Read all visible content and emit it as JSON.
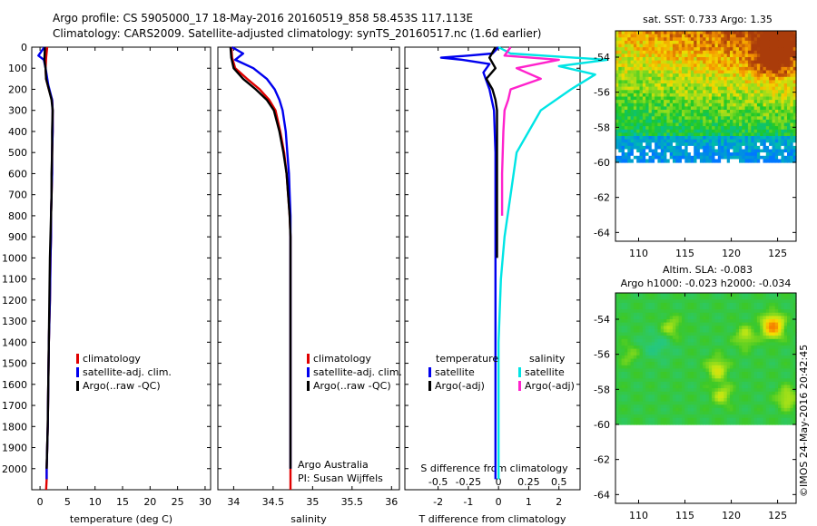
{
  "header": {
    "line1": "Argo profile: CS 5905000_17 18-May-2016 20160519_858 58.453S 117.113E",
    "line2": "Climatology: CARS2009. Satellite-adjusted climatology: synTS_20160517.nc (1.6d earlier)"
  },
  "colors": {
    "climatology": "#e00000",
    "satellite": "#0000ee",
    "argo": "#000000",
    "sat_salinity": "#00e5e5",
    "argo_salinity": "#ff22cc"
  },
  "chart_data": [
    {
      "type": "line",
      "xlabel": "temperature (deg C)",
      "ylim": [
        2100,
        0
      ],
      "xlim": [
        -1.5,
        31
      ],
      "yticks": [
        0,
        100,
        200,
        300,
        400,
        500,
        600,
        700,
        800,
        900,
        1000,
        1100,
        1200,
        1300,
        1400,
        1500,
        1600,
        1700,
        1800,
        1900,
        2000
      ],
      "xticks": [
        0,
        5,
        10,
        15,
        20,
        25,
        30
      ],
      "legend": [
        "climatology",
        "satellite-adj. clim.",
        "Argo(..raw -QC)"
      ],
      "series": [
        {
          "name": "climatology",
          "color": "#e00000",
          "x": [
            1.3,
            1.1,
            1.0,
            1.1,
            1.6,
            2.2,
            2.3,
            2.3,
            2.2,
            2.2,
            2.1,
            2.0,
            2.0,
            1.9,
            1.8,
            1.6,
            1.5,
            1.4,
            1.3,
            1.2,
            1.2,
            1.1
          ],
          "y": [
            0,
            50,
            100,
            150,
            200,
            250,
            300,
            400,
            500,
            600,
            700,
            800,
            900,
            1000,
            1200,
            1400,
            1600,
            1800,
            1900,
            2000,
            2050,
            2100
          ]
        },
        {
          "name": "satellite-adj. clim.",
          "color": "#0000ee",
          "x": [
            0.8,
            -0.3,
            0.7,
            1.0,
            1.5,
            2.2,
            2.3,
            2.3,
            2.2,
            2.2,
            2.1,
            2.0,
            2.0,
            1.9,
            1.8,
            1.6,
            1.5,
            1.4,
            1.3,
            1.2,
            1.2
          ],
          "y": [
            0,
            40,
            60,
            100,
            180,
            250,
            300,
            400,
            500,
            600,
            700,
            800,
            900,
            1000,
            1200,
            1400,
            1600,
            1800,
            1900,
            2000,
            2050
          ]
        },
        {
          "name": "Argo(..raw -QC)",
          "color": "#000000",
          "x": [
            0.9,
            0.8,
            1.0,
            1.1,
            1.6,
            2.1,
            2.3,
            2.2,
            2.2,
            2.1,
            2.1,
            2.0,
            1.9,
            1.8,
            1.7,
            1.6,
            1.5,
            1.4,
            1.3,
            1.2
          ],
          "y": [
            0,
            60,
            100,
            150,
            200,
            250,
            300,
            400,
            500,
            600,
            700,
            800,
            900,
            1000,
            1200,
            1400,
            1600,
            1800,
            1900,
            2000
          ]
        }
      ]
    },
    {
      "type": "line",
      "xlabel": "salinity",
      "ylim": [
        2100,
        0
      ],
      "xlim": [
        33.8,
        36.1
      ],
      "xticks": [
        34,
        34.5,
        35,
        35.5,
        36
      ],
      "xticklabels": [
        "34",
        "34.5",
        "35",
        "35.5",
        "36"
      ],
      "legend": [
        "climatology",
        "satellite-adj. clim.",
        "Argo(..raw -QC)"
      ],
      "annotation": [
        "Argo Australia",
        "PI: Susan Wijffels"
      ],
      "series": [
        {
          "name": "climatology",
          "color": "#e00000",
          "x": [
            33.97,
            33.98,
            34.02,
            34.17,
            34.33,
            34.45,
            34.53,
            34.59,
            34.64,
            34.67,
            34.69,
            34.71,
            34.72,
            34.72,
            34.72,
            34.72,
            34.72,
            34.72,
            34.72,
            34.72
          ],
          "y": [
            0,
            50,
            100,
            150,
            200,
            250,
            300,
            400,
            500,
            600,
            700,
            800,
            900,
            1000,
            1200,
            1400,
            1600,
            1800,
            2000,
            2100
          ]
        },
        {
          "name": "satellite-adj. clim.",
          "color": "#0000ee",
          "x": [
            33.98,
            34.12,
            34.02,
            34.25,
            34.42,
            34.52,
            34.58,
            34.62,
            34.66,
            34.68,
            34.7,
            34.71,
            34.72,
            34.72,
            34.72,
            34.72,
            34.72,
            34.72,
            34.72,
            34.72
          ],
          "y": [
            0,
            30,
            60,
            100,
            150,
            200,
            250,
            300,
            400,
            500,
            600,
            700,
            800,
            900,
            1000,
            1200,
            1400,
            1600,
            1800,
            2000
          ]
        },
        {
          "name": "Argo(..raw -QC)",
          "color": "#000000",
          "x": [
            33.96,
            33.97,
            34.0,
            34.12,
            34.28,
            34.42,
            34.51,
            34.58,
            34.63,
            34.67,
            34.69,
            34.71,
            34.72,
            34.72,
            34.72,
            34.72,
            34.72,
            34.72,
            34.72
          ],
          "y": [
            0,
            50,
            100,
            150,
            200,
            250,
            300,
            400,
            500,
            600,
            700,
            800,
            900,
            1000,
            1200,
            1400,
            1600,
            1800,
            2000
          ]
        }
      ]
    },
    {
      "type": "line",
      "xlabel": "T difference from climatology",
      "xlabel_top": "S difference from climatology",
      "ylim": [
        2100,
        0
      ],
      "xlim": [
        -3.1,
        2.7
      ],
      "xticks": [
        -2,
        -1,
        0,
        1,
        2
      ],
      "top_ticks": [
        -0.5,
        -0.25,
        0,
        0.25,
        0.5
      ],
      "top_ticklabels": [
        "-0.5",
        "-0.25",
        "0",
        "0.25",
        "0.5"
      ],
      "legend_groups": [
        {
          "title": "temperature",
          "items": [
            "satellite",
            "Argo(-adj)"
          ]
        },
        {
          "title": "salinity",
          "items": [
            "satellite",
            "Argo(-adj)"
          ]
        }
      ],
      "series": [
        {
          "name": "satellite (temperature)",
          "color": "#0000ee",
          "x": [
            0,
            -0.2,
            -1.0,
            -1.9,
            -1.2,
            -0.3,
            -0.5,
            -0.3,
            -0.15,
            -0.1,
            -0.1,
            -0.1,
            -0.1,
            -0.1,
            -0.1,
            -0.1,
            -0.1,
            -0.1,
            -0.1,
            -0.1,
            -0.1
          ],
          "y": [
            0,
            30,
            40,
            50,
            60,
            80,
            120,
            200,
            300,
            500,
            700,
            900,
            1100,
            1300,
            1500,
            1700,
            1800,
            1900,
            1950,
            2000,
            2050
          ]
        },
        {
          "name": "Argo(-adj) (temperature)",
          "color": "#000000",
          "x": [
            -0.1,
            -0.3,
            -0.1,
            -0.4,
            -0.2,
            -0.1,
            -0.05,
            -0.05,
            -0.05,
            -0.05,
            -0.05
          ],
          "y": [
            0,
            50,
            100,
            150,
            200,
            250,
            300,
            400,
            600,
            800,
            1000
          ]
        },
        {
          "name": "satellite (salinity)",
          "color": "#00e5e5",
          "x": [
            0.0,
            0.1,
            0.9,
            0.5,
            0.8,
            0.6,
            0.35,
            0.25,
            0.15,
            0.1,
            0.05,
            0.02,
            0.0,
            0.0,
            0.0,
            0.0,
            0.0
          ],
          "y": [
            0,
            30,
            60,
            90,
            130,
            200,
            300,
            400,
            500,
            700,
            900,
            1100,
            1400,
            1700,
            1900,
            2000,
            2050
          ]
        },
        {
          "name": "Argo(-adj) (salinity)",
          "color": "#ff22cc",
          "x": [
            0.1,
            0.05,
            0.5,
            0.15,
            0.35,
            0.1,
            0.08,
            0.05,
            0.04,
            0.03,
            0.03
          ],
          "y": [
            0,
            40,
            60,
            100,
            150,
            200,
            250,
            300,
            400,
            600,
            800
          ]
        }
      ]
    },
    {
      "type": "heatmap",
      "title": "sat. SST: 0.733 Argo: 1.35",
      "xlim": [
        107.5,
        127
      ],
      "ylim": [
        -64.5,
        -52.5
      ],
      "xticks": [
        110,
        115,
        120,
        125
      ],
      "yticks": [
        -54,
        -56,
        -58,
        -60,
        -62,
        -64
      ],
      "yticklabels": [
        "-54",
        "-56",
        "-58",
        "-60",
        "-62",
        "-64"
      ]
    },
    {
      "type": "heatmap",
      "title": "Altim. SLA: -0.083",
      "subtitle": "Argo h1000: -0.023 h2000: -0.034",
      "xlim": [
        107.5,
        127
      ],
      "ylim": [
        -64.5,
        -52.5
      ],
      "xticks": [
        110,
        115,
        120,
        125
      ],
      "yticks": [
        -54,
        -56,
        -58,
        -60,
        -62,
        -64
      ],
      "yticklabels": [
        "-54",
        "-56",
        "-58",
        "-60",
        "-62",
        "-64"
      ]
    }
  ],
  "watermark": "©IMOS 24-May-2016 20:42:45"
}
